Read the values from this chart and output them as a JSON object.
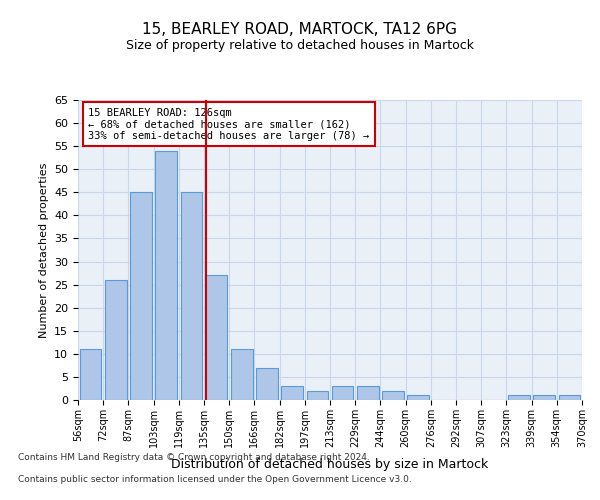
{
  "title1": "15, BEARLEY ROAD, MARTOCK, TA12 6PG",
  "title2": "Size of property relative to detached houses in Martock",
  "xlabel": "Distribution of detached houses by size in Martock",
  "ylabel": "Number of detached properties",
  "categories": [
    "56sqm",
    "72sqm",
    "87sqm",
    "103sqm",
    "119sqm",
    "135sqm",
    "150sqm",
    "166sqm",
    "182sqm",
    "197sqm",
    "213sqm",
    "229sqm",
    "244sqm",
    "260sqm",
    "276sqm",
    "292sqm",
    "307sqm",
    "323sqm",
    "339sqm",
    "354sqm",
    "370sqm"
  ],
  "bar_values": [
    11,
    26,
    45,
    54,
    45,
    27,
    11,
    7,
    3,
    2,
    3,
    3,
    2,
    1,
    0,
    0,
    0,
    1,
    1,
    1
  ],
  "bar_color": "#aec6e8",
  "bar_edge_color": "#5b9bd5",
  "grid_color": "#c8d8e8",
  "background_color": "#eaf0f8",
  "red_line_x": 4.575,
  "annotation_text": "15 BEARLEY ROAD: 126sqm\n← 68% of detached houses are smaller (162)\n33% of semi-detached houses are larger (78) →",
  "annotation_box_color": "#ffffff",
  "annotation_box_edge_color": "#cc0000",
  "ylim": [
    0,
    65
  ],
  "yticks": [
    0,
    5,
    10,
    15,
    20,
    25,
    30,
    35,
    40,
    45,
    50,
    55,
    60,
    65
  ],
  "footer_line1": "Contains HM Land Registry data © Crown copyright and database right 2024.",
  "footer_line2": "Contains public sector information licensed under the Open Government Licence v3.0."
}
